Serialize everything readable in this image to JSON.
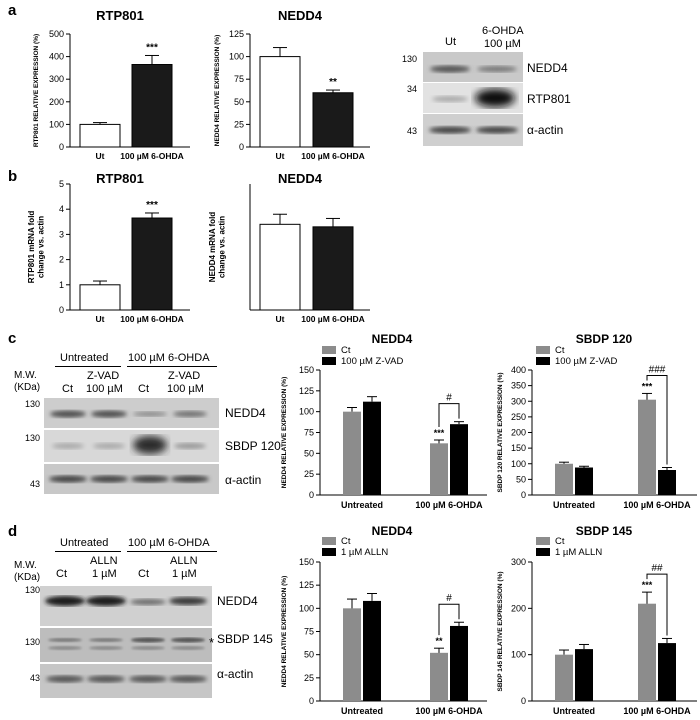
{
  "panels": {
    "a": {
      "letter": "a",
      "charts": [
        {
          "type": "bar",
          "title": "RTP801",
          "ylabel": "RTP801 RELATIVE EXPRESSION (%)",
          "categories": [
            "Ut",
            "100 µM 6-OHDA"
          ],
          "values": [
            100,
            365
          ],
          "errors": [
            8,
            40
          ],
          "ylim": [
            0,
            500
          ],
          "ticks": [
            0,
            100,
            200,
            300,
            400,
            500
          ],
          "fills": [
            "#ffffff",
            "#1a1a1a"
          ],
          "sig": [
            "",
            "***"
          ]
        },
        {
          "type": "bar",
          "title": "NEDD4",
          "ylabel": "NEDD4 RELATIVE EXPRESSION (%)",
          "categories": [
            "Ut",
            "100 µM 6-OHDA"
          ],
          "values": [
            100,
            60
          ],
          "errors": [
            10,
            3
          ],
          "ylim": [
            0,
            125
          ],
          "ticks": [
            0,
            25,
            50,
            75,
            100,
            125
          ],
          "fills": [
            "#ffffff",
            "#1a1a1a"
          ],
          "sig": [
            "",
            "**"
          ]
        }
      ],
      "blot": {
        "lanes": [
          "Ut",
          "6-OHDA\n100 µM"
        ],
        "lane1": "Ut",
        "lane2_line1": "6-OHDA",
        "lane2_line2": "100 µM",
        "rows": [
          {
            "mw": "130",
            "protein": "NEDD4"
          },
          {
            "mw": "34",
            "protein": "RTP801"
          },
          {
            "mw": "43",
            "protein": "α-actin"
          }
        ]
      }
    },
    "b": {
      "letter": "b",
      "charts": [
        {
          "type": "bar",
          "title": "RTP801",
          "ylabel": "RTP801 mRNA fold change vs. actin",
          "categories": [
            "Ut",
            "100 µM 6-OHDA"
          ],
          "values": [
            1.0,
            3.65
          ],
          "errors": [
            0.15,
            0.2
          ],
          "ylim": [
            0,
            5
          ],
          "ticks": [
            0,
            1,
            2,
            3,
            4,
            5
          ],
          "fills": [
            "#ffffff",
            "#1a1a1a"
          ],
          "sig": [
            "",
            "***"
          ]
        },
        {
          "type": "bar",
          "title": "NEDD4",
          "ylabel": "NEDD4 mRNA fold change vs. actin",
          "categories": [
            "Ut",
            "100 µM 6-OHDA"
          ],
          "values": [
            1.02,
            0.99
          ],
          "errors": [
            0.12,
            0.1
          ],
          "ylim": [
            0,
            1.5
          ],
          "ticks": [],
          "fills": [
            "#ffffff",
            "#1a1a1a"
          ],
          "sig": [
            "",
            ""
          ]
        }
      ]
    },
    "c": {
      "letter": "c",
      "blot": {
        "group1": "Untreated",
        "group2": "100 µM 6-OHDA",
        "mw_label1": "M.W.",
        "mw_label2": "(KDa)",
        "lanes": [
          {
            "l1": "Ct",
            "l2": ""
          },
          {
            "l1": "Z-VAD",
            "l2": "100 µM"
          },
          {
            "l1": "Ct",
            "l2": ""
          },
          {
            "l1": "Z-VAD",
            "l2": "100 µM"
          }
        ],
        "rows": [
          {
            "mw": "130",
            "protein": "NEDD4"
          },
          {
            "mw": "130",
            "protein": "SBDP 120"
          },
          {
            "mw": "43",
            "protein": "α-actin"
          }
        ]
      },
      "charts": [
        {
          "type": "bar",
          "title": "NEDD4",
          "ylabel": "NEDD4 RELATIVE EXPRESSION (%)",
          "categories": [
            "Untreated",
            "100 µM 6-OHDA"
          ],
          "series": [
            {
              "name": "Ct",
              "values": [
                100,
                62
              ],
              "errors": [
                5,
                4
              ],
              "color": "#8c8c8c"
            },
            {
              "name": "100 µM Z-VAD",
              "values": [
                112,
                85
              ],
              "errors": [
                6,
                3
              ],
              "color": "#000000"
            }
          ],
          "ylim": [
            0,
            150
          ],
          "ticks": [
            0,
            25,
            50,
            75,
            100,
            125,
            150
          ],
          "sig": "***",
          "bracket": "#"
        },
        {
          "type": "bar",
          "title": "SBDP 120",
          "ylabel": "SBDP 120 RELATIVE EXPRESSION (%)",
          "categories": [
            "Untreated",
            "100 µM 6-OHDA"
          ],
          "series": [
            {
              "name": "Ct",
              "values": [
                100,
                305
              ],
              "errors": [
                5,
                20
              ],
              "color": "#8c8c8c"
            },
            {
              "name": "100 µM Z-VAD",
              "values": [
                88,
                80
              ],
              "errors": [
                4,
                8
              ],
              "color": "#000000"
            }
          ],
          "ylim": [
            0,
            400
          ],
          "ticks": [
            0,
            50,
            100,
            150,
            200,
            250,
            300,
            350,
            400
          ],
          "sig": "***",
          "bracket": "###"
        }
      ]
    },
    "d": {
      "letter": "d",
      "blot": {
        "group1": "Untreated",
        "group2": "100 µM 6-OHDA",
        "mw_label1": "M.W.",
        "mw_label2": "(KDa)",
        "lanes": [
          {
            "l1": "Ct",
            "l2": ""
          },
          {
            "l1": "ALLN",
            "l2": "1 µM"
          },
          {
            "l1": "Ct",
            "l2": ""
          },
          {
            "l1": "ALLN",
            "l2": "1 µM"
          }
        ],
        "rows": [
          {
            "mw": "130",
            "protein": "NEDD4"
          },
          {
            "mw": "130",
            "protein": "SBDP 145"
          },
          {
            "mw": "43",
            "protein": "α-actin"
          }
        ],
        "star": "*"
      },
      "charts": [
        {
          "type": "bar",
          "title": "NEDD4",
          "ylabel": "NEDD4 RELATIVE EXPRESSION (%)",
          "categories": [
            "Untreated",
            "100 µM 6-OHDA"
          ],
          "series": [
            {
              "name": "Ct",
              "values": [
                100,
                52
              ],
              "errors": [
                10,
                5
              ],
              "color": "#8c8c8c"
            },
            {
              "name": "1 µM ALLN",
              "values": [
                108,
                81
              ],
              "errors": [
                8,
                4
              ],
              "color": "#000000"
            }
          ],
          "ylim": [
            0,
            150
          ],
          "ticks": [
            0,
            25,
            50,
            75,
            100,
            125,
            150
          ],
          "sig": "**",
          "bracket": "#"
        },
        {
          "type": "bar",
          "title": "SBDP 145",
          "ylabel": "SBDP 145 RELATIVE EXPRESSION (%)",
          "categories": [
            "Untreated",
            "100 µM 6-OHDA"
          ],
          "series": [
            {
              "name": "Ct",
              "values": [
                100,
                210
              ],
              "errors": [
                10,
                25
              ],
              "color": "#8c8c8c"
            },
            {
              "name": "1 µM ALLN",
              "values": [
                112,
                125
              ],
              "errors": [
                10,
                10
              ],
              "color": "#000000"
            }
          ],
          "ylim": [
            0,
            300
          ],
          "ticks": [
            0,
            100,
            200,
            300
          ],
          "sig": "***",
          "bracket": "##"
        }
      ]
    }
  }
}
